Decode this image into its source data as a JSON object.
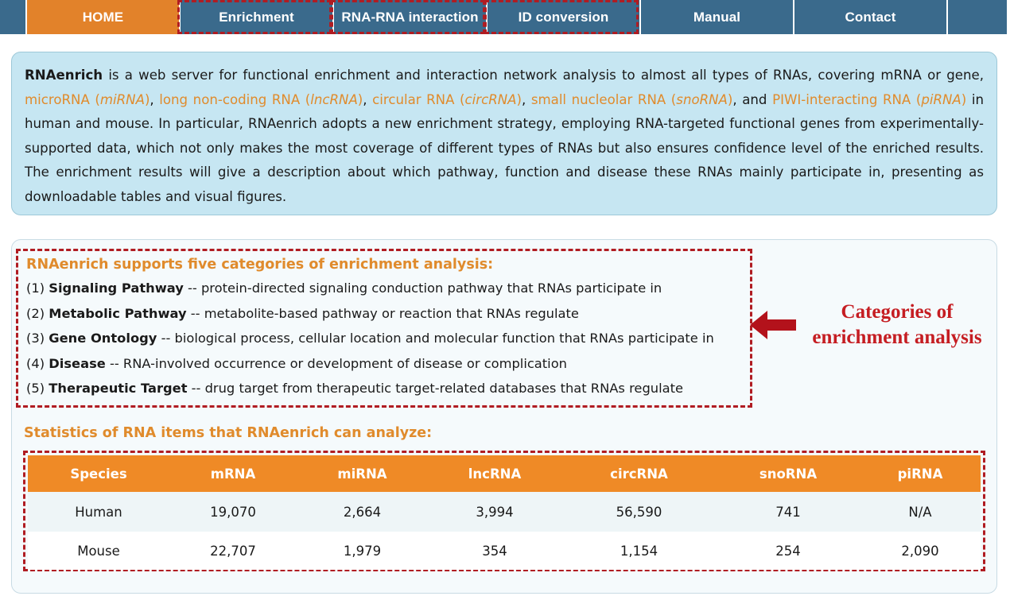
{
  "nav": {
    "items": [
      {
        "label": "HOME"
      },
      {
        "label": "Enrichment"
      },
      {
        "label": "RNA-RNA interaction"
      },
      {
        "label": "ID conversion"
      },
      {
        "label": "Manual"
      },
      {
        "label": "Contact"
      }
    ]
  },
  "intro": {
    "brand": "RNAenrich",
    "t1": " is a web server for functional enrichment and interaction network analysis to almost all types of RNAs, covering mRNA or gene, ",
    "mirna_a": "microRNA (",
    "mirna_b": "miRNA",
    "mirna_c": ")",
    "sep1": ", ",
    "lnc_a": "long non-coding RNA (",
    "lnc_b": "lncRNA",
    "lnc_c": ")",
    "sep2": ", ",
    "circ_a": "circular RNA (",
    "circ_b": "circRNA",
    "circ_c": ")",
    "sep3": ", ",
    "sno_a": "small nucleolar RNA (",
    "sno_b": "snoRNA",
    "sno_c": ")",
    "sep4": ", and ",
    "pi_a": "PIWI-interacting RNA (",
    "pi_b": "piRNA",
    "pi_c": ")",
    "t2": " in human and mouse. In particular, RNAenrich adopts a new enrichment strategy, employing RNA-targeted functional genes from experimentally-supported data, which not only makes the most coverage of different types of RNAs but also ensures confidence level of the enriched results. The enrichment results will give a description about which pathway, function and disease these RNAs mainly participate in, presenting as downloadable tables and visual figures."
  },
  "categories": {
    "title": "RNAenrich supports five categories of enrichment analysis:",
    "items": [
      {
        "num": "(1) ",
        "name": "Signaling Pathway",
        "desc": " -- protein-directed signaling conduction pathway that RNAs participate in"
      },
      {
        "num": "(2) ",
        "name": "Metabolic Pathway",
        "desc": " -- metabolite-based pathway or reaction that RNAs regulate"
      },
      {
        "num": "(3) ",
        "name": "Gene Ontology",
        "desc": " -- biological process, cellular location and molecular function that RNAs participate in"
      },
      {
        "num": "(4) ",
        "name": "Disease",
        "desc": " -- RNA-involved occurrence or development of disease or complication"
      },
      {
        "num": "(5) ",
        "name": "Therapeutic Target",
        "desc": " -- drug target from therapeutic target-related databases that RNAs regulate"
      }
    ]
  },
  "callout": {
    "line1": "Categories of",
    "line2": "enrichment analysis"
  },
  "stats": {
    "title": "Statistics of RNA items that RNAenrich can analyze:",
    "headers": [
      "Species",
      "mRNA",
      "miRNA",
      "lncRNA",
      "circRNA",
      "snoRNA",
      "piRNA"
    ],
    "rows": [
      [
        "Human",
        "19,070",
        "2,664",
        "3,994",
        "56,590",
        "741",
        "N/A"
      ],
      [
        "Mouse",
        "22,707",
        "1,979",
        "354",
        "1,154",
        "254",
        "2,090"
      ]
    ]
  },
  "colors": {
    "nav_bg": "#3a6a8c",
    "nav_active": "#e2822a",
    "accent_orange": "#e08b2c",
    "highlight_red": "#b01c22",
    "intro_bg": "#c6e6f2",
    "table_header": "#ef8a26"
  }
}
